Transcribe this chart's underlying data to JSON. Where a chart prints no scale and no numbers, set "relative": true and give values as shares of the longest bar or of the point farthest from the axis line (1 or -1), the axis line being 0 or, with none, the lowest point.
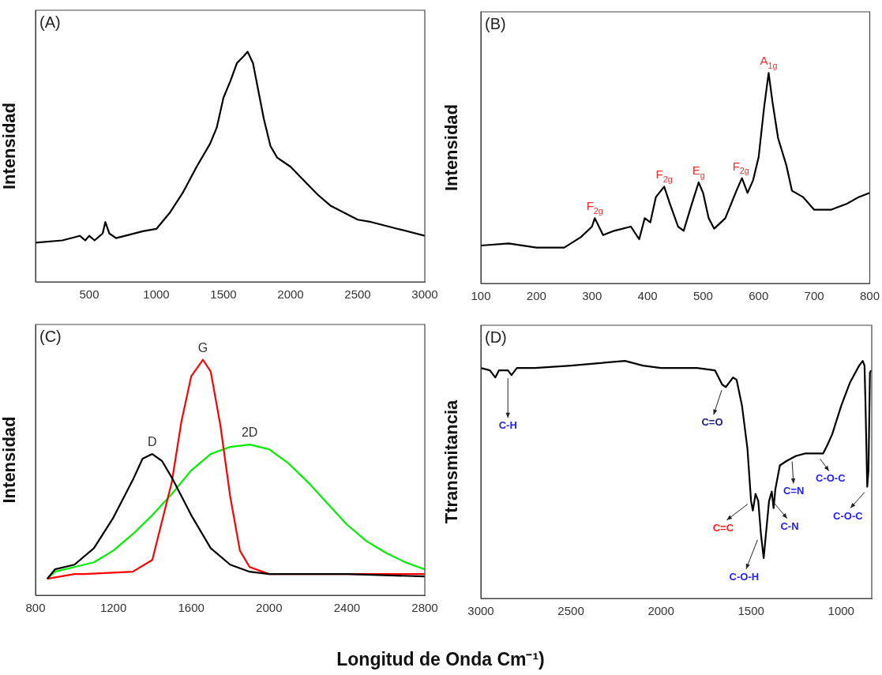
{
  "chart_data": [
    {
      "type": "line",
      "title": "(A)",
      "ylabel": "Intensidad",
      "relative": true,
      "xlim": [
        100,
        3000
      ],
      "xticks": [
        500,
        1000,
        1500,
        2000,
        2500,
        3000
      ],
      "x": [
        100,
        300,
        430,
        470,
        500,
        540,
        600,
        620,
        650,
        700,
        900,
        1000,
        1100,
        1200,
        1300,
        1400,
        1450,
        1500,
        1550,
        1600,
        1650,
        1680,
        1720,
        1750,
        1800,
        1850,
        1900,
        2000,
        2100,
        2200,
        2300,
        2400,
        2500,
        2600,
        2800,
        3000
      ],
      "series": [
        {
          "color": "#000000",
          "values": [
            0.17,
            0.18,
            0.2,
            0.18,
            0.2,
            0.18,
            0.21,
            0.26,
            0.21,
            0.19,
            0.22,
            0.23,
            0.3,
            0.39,
            0.5,
            0.6,
            0.67,
            0.8,
            0.87,
            0.95,
            0.98,
            1.0,
            0.95,
            0.86,
            0.71,
            0.59,
            0.54,
            0.5,
            0.44,
            0.38,
            0.33,
            0.3,
            0.27,
            0.26,
            0.23,
            0.2
          ]
        }
      ]
    },
    {
      "type": "line",
      "title": "(B)",
      "ylabel": "Intensidad",
      "relative": true,
      "xlim": [
        100,
        800
      ],
      "xticks": [
        100,
        200,
        300,
        400,
        500,
        600,
        700,
        800
      ],
      "x": [
        100,
        150,
        200,
        250,
        280,
        300,
        305,
        320,
        340,
        370,
        385,
        395,
        405,
        415,
        430,
        440,
        455,
        465,
        480,
        492,
        500,
        510,
        520,
        540,
        560,
        570,
        580,
        590,
        600,
        610,
        618,
        625,
        635,
        650,
        660,
        680,
        700,
        730,
        760,
        780,
        800
      ],
      "series": [
        {
          "color": "#000000",
          "values": [
            0.18,
            0.19,
            0.17,
            0.17,
            0.22,
            0.27,
            0.31,
            0.23,
            0.25,
            0.27,
            0.21,
            0.31,
            0.29,
            0.41,
            0.46,
            0.38,
            0.27,
            0.25,
            0.38,
            0.48,
            0.43,
            0.31,
            0.26,
            0.31,
            0.44,
            0.5,
            0.43,
            0.49,
            0.6,
            0.84,
            1.0,
            0.86,
            0.69,
            0.56,
            0.44,
            0.41,
            0.35,
            0.35,
            0.38,
            0.41,
            0.43
          ]
        }
      ],
      "annotations": [
        {
          "text": "F$_{2g}$",
          "x": 305,
          "y": 0.31
        },
        {
          "text": "F$_{2g}$",
          "x": 430,
          "y": 0.46
        },
        {
          "text": "E$_{g}$",
          "x": 492,
          "y": 0.48
        },
        {
          "text": "F$_{2g}$",
          "x": 568,
          "y": 0.5
        },
        {
          "text": "A$_{1g}$",
          "x": 618,
          "y": 1.0
        }
      ]
    },
    {
      "type": "line",
      "title": "(C)",
      "ylabel": "Intensidad",
      "xlabel": "Longitud de Onda Cm⁻¹)",
      "relative": true,
      "xlim": [
        800,
        2800
      ],
      "xticks": [
        800,
        1200,
        1600,
        2000,
        2400,
        2800
      ],
      "series": [
        {
          "name": "D",
          "color": "#000000",
          "x": [
            860,
            900,
            1000,
            1100,
            1200,
            1300,
            1350,
            1400,
            1450,
            1500,
            1600,
            1700,
            1800,
            1900,
            2000,
            2400,
            2800
          ],
          "values": [
            0.07,
            0.11,
            0.13,
            0.2,
            0.33,
            0.49,
            0.58,
            0.6,
            0.57,
            0.5,
            0.34,
            0.2,
            0.13,
            0.1,
            0.09,
            0.09,
            0.08
          ]
        },
        {
          "name": "G",
          "color": "#ff0000",
          "x": [
            860,
            1000,
            1050,
            1300,
            1400,
            1500,
            1550,
            1600,
            1660,
            1700,
            1750,
            1800,
            1850,
            1900,
            2000,
            2800
          ],
          "values": [
            0.07,
            0.09,
            0.09,
            0.1,
            0.15,
            0.48,
            0.74,
            0.93,
            1.0,
            0.95,
            0.72,
            0.42,
            0.19,
            0.12,
            0.09,
            0.09
          ]
        },
        {
          "name": "2D",
          "color": "#00ee00",
          "x": [
            860,
            900,
            1000,
            1100,
            1200,
            1300,
            1400,
            1500,
            1600,
            1700,
            1800,
            1900,
            2000,
            2100,
            2200,
            2300,
            2400,
            2500,
            2600,
            2700,
            2800
          ],
          "values": [
            0.07,
            0.1,
            0.12,
            0.14,
            0.19,
            0.26,
            0.34,
            0.43,
            0.53,
            0.6,
            0.63,
            0.64,
            0.62,
            0.56,
            0.48,
            0.39,
            0.3,
            0.23,
            0.18,
            0.14,
            0.11
          ]
        }
      ]
    },
    {
      "type": "line",
      "title": "(D)",
      "ylabel": "Ttransmitancia",
      "relative": true,
      "xlim": [
        3000,
        830
      ],
      "xticks": [
        3000,
        2500,
        2000,
        1500,
        1000
      ],
      "x": [
        3000,
        2950,
        2920,
        2900,
        2850,
        2830,
        2800,
        2700,
        2500,
        2350,
        2200,
        2100,
        2000,
        1800,
        1700,
        1660,
        1640,
        1600,
        1580,
        1550,
        1520,
        1500,
        1490,
        1475,
        1460,
        1445,
        1430,
        1415,
        1400,
        1385,
        1375,
        1365,
        1340,
        1300,
        1250,
        1200,
        1100,
        1080,
        1050,
        1000,
        950,
        900,
        880,
        870,
        865,
        855,
        848,
        840,
        834
      ],
      "series": [
        {
          "color": "#000000",
          "values": [
            0.97,
            0.96,
            0.93,
            0.96,
            0.96,
            0.94,
            0.97,
            0.97,
            0.98,
            0.99,
            1.0,
            0.98,
            0.97,
            0.97,
            0.96,
            0.9,
            0.89,
            0.93,
            0.92,
            0.81,
            0.63,
            0.41,
            0.37,
            0.44,
            0.41,
            0.27,
            0.17,
            0.29,
            0.41,
            0.45,
            0.38,
            0.46,
            0.56,
            0.58,
            0.6,
            0.61,
            0.61,
            0.64,
            0.69,
            0.81,
            0.91,
            0.98,
            1.0,
            0.98,
            0.83,
            0.47,
            0.54,
            0.95,
            0.96
          ]
        }
      ],
      "annotations": [
        {
          "text": "C-H",
          "x": 2850,
          "y": 0.94
        },
        {
          "text": "C=O",
          "x": 1663,
          "y": 0.89
        },
        {
          "text": "C=C",
          "x": 1519,
          "y": 0.41
        },
        {
          "text": "C-O-H",
          "x": 1464,
          "y": 0.26
        },
        {
          "text": "C-N",
          "x": 1378,
          "y": 0.42
        },
        {
          "text": "C=N",
          "x": 1272,
          "y": 0.59
        },
        {
          "text": "C-O-C",
          "x": 1116,
          "y": 0.6
        },
        {
          "text": "C-O-C",
          "x": 870,
          "y": 0.46
        }
      ]
    }
  ]
}
